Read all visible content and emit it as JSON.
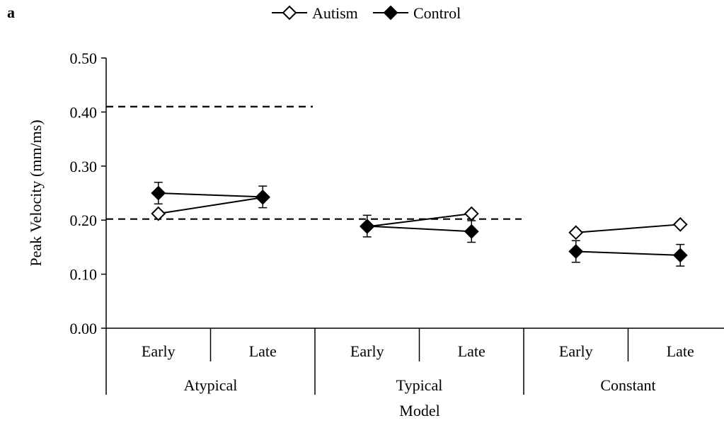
{
  "panel_label": "a",
  "chart_data": {
    "type": "line",
    "ylabel": "Peak Velocity (mm/ms)",
    "xlabel": "Model",
    "ylim": [
      0,
      0.5
    ],
    "yticks": [
      "0.00",
      "0.10",
      "0.20",
      "0.30",
      "0.40",
      "0.50"
    ],
    "legend_position": "top-center",
    "groups": [
      {
        "name": "Atypical",
        "categories": [
          "Early",
          "Late"
        ],
        "reference_line": 0.41
      },
      {
        "name": "Typical",
        "categories": [
          "Early",
          "Late"
        ],
        "reference_line": 0.202
      },
      {
        "name": "Constant",
        "categories": [
          "Early",
          "Late"
        ],
        "reference_line": null
      }
    ],
    "series": [
      {
        "name": "Autism",
        "marker": "open-diamond",
        "values": [
          [
            0.212,
            0.242
          ],
          [
            0.188,
            0.212
          ],
          [
            0.177,
            0.192
          ]
        ],
        "errors": [
          [
            0.004,
            0.004
          ],
          [
            0.004,
            0.004
          ],
          [
            0.004,
            0.004
          ]
        ]
      },
      {
        "name": "Control",
        "marker": "filled-diamond",
        "values": [
          [
            0.25,
            0.243
          ],
          [
            0.189,
            0.179
          ],
          [
            0.142,
            0.135
          ]
        ],
        "errors": [
          [
            0.02,
            0.02
          ],
          [
            0.02,
            0.02
          ],
          [
            0.02,
            0.02
          ]
        ]
      }
    ],
    "grid": false
  }
}
